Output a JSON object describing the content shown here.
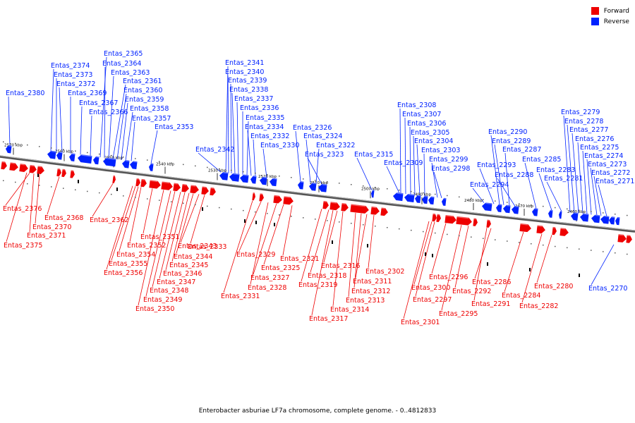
{
  "caption": "Enterobacter asburiae LF7a chromosome, complete genome. - 0..4812833",
  "legend": [
    {
      "label": "Forward",
      "color": "#ee0000"
    },
    {
      "label": "Reverse",
      "color": "#0022ff"
    }
  ],
  "colors": {
    "forward": "#ee0000",
    "reverse": "#0022ff",
    "backbone": "#555555"
  },
  "axis_ticks": [
    "2570 kbp",
    "2560 kbp",
    "2550 kbp",
    "2540 kbp",
    "2530 kbp",
    "2520 kbp",
    "2510 kbp",
    "2500 kbp",
    "2490 kbp",
    "2480 kbp",
    "2470 kbp",
    "2460 kbp"
  ],
  "reverse_genes": [
    "Entas_2380",
    "Entas_2374",
    "Entas_2373",
    "Entas_2372",
    "Entas_2369",
    "Entas_2367",
    "Entas_2366",
    "Entas_2365",
    "Entas_2364",
    "Entas_2363",
    "Entas_2361",
    "Entas_2360",
    "Entas_2359",
    "Entas_2358",
    "Entas_2357",
    "Entas_2353",
    "Entas_2342",
    "Entas_2341",
    "Entas_2340",
    "Entas_2339",
    "Entas_2338",
    "Entas_2337",
    "Entas_2336",
    "Entas_2335",
    "Entas_2334",
    "Entas_2332",
    "Entas_2330",
    "Entas_2326",
    "Entas_2324",
    "Entas_2322",
    "Entas_2323",
    "Entas_2315",
    "Entas_2309",
    "Entas_2308",
    "Entas_2307",
    "Entas_2306",
    "Entas_2305",
    "Entas_2304",
    "Entas_2303",
    "Entas_2299",
    "Entas_2298",
    "Entas_2294",
    "Entas_2293",
    "Entas_2290",
    "Entas_2289",
    "Entas_2287",
    "Entas_2288",
    "Entas_2285",
    "Entas_2283",
    "Entas_2281",
    "Entas_2279",
    "Entas_2278",
    "Entas_2277",
    "Entas_2276",
    "Entas_2275",
    "Entas_2274",
    "Entas_2273",
    "Entas_2272",
    "Entas_2271",
    "Entas_2270"
  ],
  "forward_genes": [
    "Entas_2376",
    "Entas_2375",
    "Entas_2371",
    "Entas_2370",
    "Entas_2368",
    "Entas_2362",
    "Entas_2356",
    "Entas_2355",
    "Entas_2354",
    "Entas_2352",
    "Entas_2351",
    "Entas_2350",
    "Entas_2349",
    "Entas_2348",
    "Entas_2347",
    "Entas_2346",
    "Entas_2345",
    "Entas_2344",
    "Entas_2343",
    "Entas_2333",
    "Entas_2331",
    "Entas_2329",
    "Entas_2328",
    "Entas_2327",
    "Entas_2325",
    "Entas_2321",
    "Entas_2319",
    "Entas_2318",
    "Entas_2317",
    "Entas_2316",
    "Entas_2314",
    "Entas_2313",
    "Entas_2312",
    "Entas_2311",
    "Entas_2302",
    "Entas_2301",
    "Entas_2300",
    "Entas_2297",
    "Entas_2296",
    "Entas_2295",
    "Entas_2292",
    "Entas_2291",
    "Entas_2286",
    "Entas_2284",
    "Entas_2282",
    "Entas_2280"
  ]
}
